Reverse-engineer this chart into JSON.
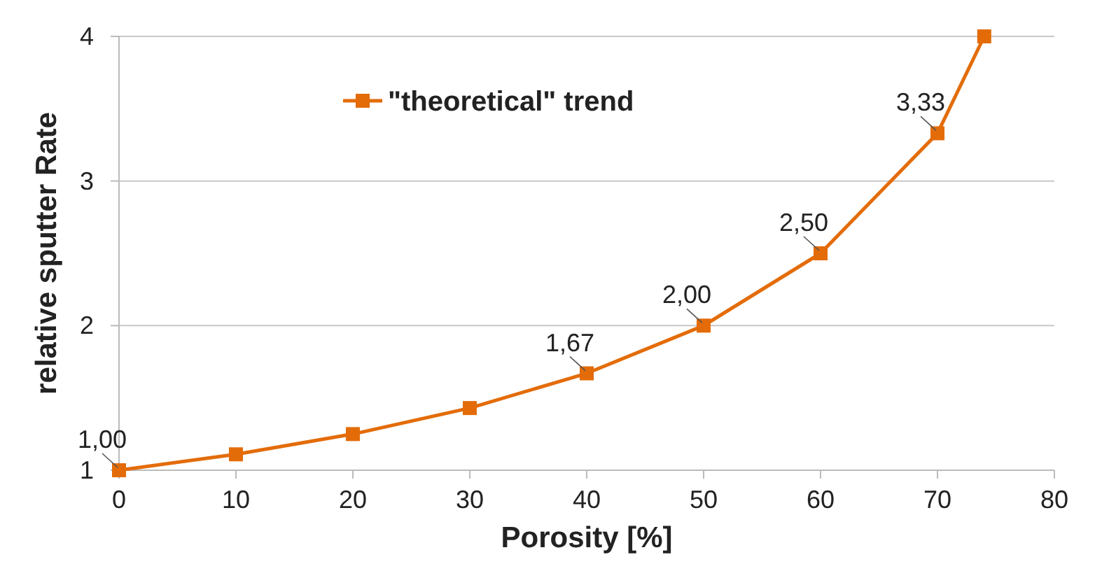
{
  "chart_data": {
    "type": "line",
    "xlabel": "Porosity [%]",
    "ylabel": "relative sputter Rate",
    "x": [
      0,
      10,
      20,
      30,
      40,
      50,
      60,
      70,
      74
    ],
    "series": [
      {
        "name": "\"theoretical\" trend",
        "color": "#e36c09",
        "values": [
          1,
          1.11,
          1.25,
          1.43,
          1.67,
          2,
          2.5,
          3.33,
          4
        ],
        "value_labels": [
          "1,00",
          null,
          null,
          null,
          "1,67",
          "2,00",
          "2,50",
          "3,33",
          null
        ]
      }
    ],
    "xlim": [
      0,
      80
    ],
    "xticks": [
      0,
      10,
      20,
      30,
      40,
      50,
      60,
      70,
      80
    ],
    "ylim": [
      1,
      4
    ],
    "yticks": [
      1,
      2,
      3,
      4
    ],
    "grid": "y",
    "legend": "top",
    "marker": "square",
    "line_style": "solid"
  }
}
